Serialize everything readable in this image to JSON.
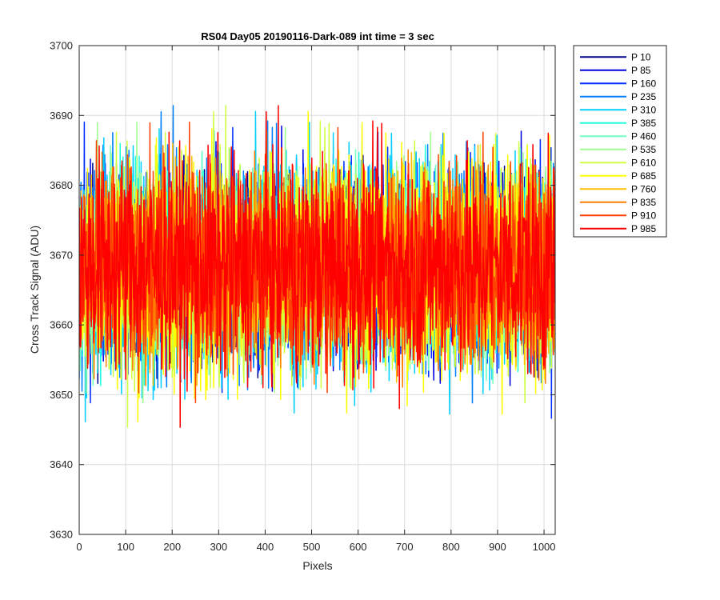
{
  "chart_data": {
    "type": "line",
    "title": "RS04 Day05 20190116-Dark-089 int time = 3 sec",
    "xlabel": "Pixels",
    "ylabel": "Cross Track Signal (ADU)",
    "xlim": [
      0,
      1024
    ],
    "ylim": [
      3630,
      3700
    ],
    "xticks": [
      0,
      100,
      200,
      300,
      400,
      500,
      600,
      700,
      800,
      900,
      1000
    ],
    "yticks": [
      3630,
      3640,
      3650,
      3660,
      3670,
      3680,
      3690,
      3700
    ],
    "grid": true,
    "legend_position": "outside-top-right",
    "x_points": 1024,
    "noise": {
      "mean": 3668.5,
      "spread": 8.5,
      "min": 3636,
      "max": 3697
    },
    "series": [
      {
        "name": "P 10",
        "color": "#00008f"
      },
      {
        "name": "P 85",
        "color": "#0000df"
      },
      {
        "name": "P 160",
        "color": "#0030ff"
      },
      {
        "name": "P 235",
        "color": "#0080ff"
      },
      {
        "name": "P 310",
        "color": "#00cfff"
      },
      {
        "name": "P 385",
        "color": "#20ffdf"
      },
      {
        "name": "P 460",
        "color": "#70ffbf"
      },
      {
        "name": "P 535",
        "color": "#9fff8f"
      },
      {
        "name": "P 610",
        "color": "#cfff40"
      },
      {
        "name": "P 685",
        "color": "#ffff00"
      },
      {
        "name": "P 760",
        "color": "#ffbf00"
      },
      {
        "name": "P 835",
        "color": "#ff8000"
      },
      {
        "name": "P 910",
        "color": "#ff4000"
      },
      {
        "name": "P 985",
        "color": "#ff0000"
      }
    ]
  }
}
